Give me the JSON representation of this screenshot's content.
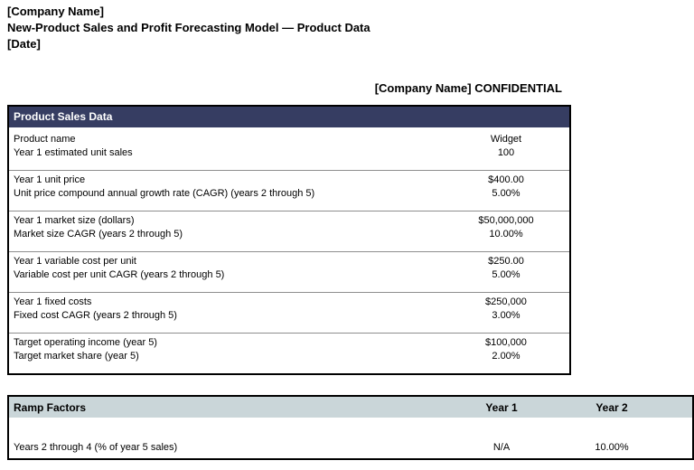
{
  "page": {
    "company_name": "[Company Name]",
    "title": "New-Product Sales and Profit Forecasting Model — Product Data",
    "date": "[Date]",
    "confidential": "[Company Name] CONFIDENTIAL"
  },
  "product_sales": {
    "header": "Product Sales Data",
    "groups": [
      {
        "rows": [
          {
            "label": "Product name",
            "value": "Widget"
          },
          {
            "label": "Year 1 estimated unit sales",
            "value": "100"
          }
        ]
      },
      {
        "rows": [
          {
            "label": "Year 1 unit price",
            "value": "$400.00"
          },
          {
            "label": "Unit price compound annual growth rate (CAGR) (years 2 through 5)",
            "value": "5.00%"
          }
        ]
      },
      {
        "rows": [
          {
            "label": "Year 1 market size (dollars)",
            "value": "$50,000,000"
          },
          {
            "label": "Market size CAGR (years 2 through 5)",
            "value": "10.00%"
          }
        ]
      },
      {
        "rows": [
          {
            "label": "Year 1 variable cost per unit",
            "value": "$250.00"
          },
          {
            "label": "Variable cost per unit CAGR (years 2 through 5)",
            "value": "5.00%"
          }
        ]
      },
      {
        "rows": [
          {
            "label": "Year 1 fixed costs",
            "value": "$250,000"
          },
          {
            "label": "Fixed cost CAGR (years 2 through 5)",
            "value": "3.00%"
          }
        ]
      },
      {
        "rows": [
          {
            "label": "Target operating income (year 5)",
            "value": "$100,000"
          },
          {
            "label": "Target market share (year 5)",
            "value": "2.00%"
          }
        ]
      }
    ]
  },
  "ramp_factors": {
    "header": "Ramp Factors",
    "columns": [
      "Year 1",
      "Year 2"
    ],
    "rows": [
      {
        "label": "Years 2 through 4 (% of year 5 sales)",
        "values": [
          "N/A",
          "10.00%"
        ]
      }
    ]
  },
  "colors": {
    "section_header_bg": "#363D62",
    "section_header_text": "#FFFFFF",
    "ramp_header_bg": "#CAD6D9",
    "separator": "#8E8E8E"
  }
}
